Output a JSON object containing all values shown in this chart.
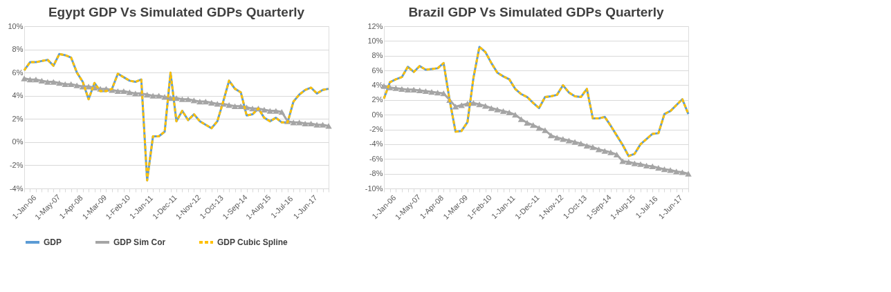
{
  "chart_data": [
    {
      "type": "line",
      "title": "Egypt GDP Vs Simulated GDPs Quarterly",
      "categories": [
        "1-Jan-06",
        null,
        null,
        null,
        "1-May-07",
        null,
        null,
        null,
        "1-Apr-08",
        null,
        null,
        null,
        "1-Mar-09",
        null,
        null,
        null,
        "1-Feb-10",
        null,
        null,
        null,
        "1-Jan-11",
        null,
        null,
        null,
        "1-Dec-11",
        null,
        null,
        null,
        "1-Nov-12",
        null,
        null,
        null,
        "1-Oct-13",
        null,
        null,
        null,
        "1-Sep-14",
        null,
        null,
        null,
        "1-Aug-15",
        null,
        null,
        null,
        "1-Jul-16",
        null,
        null,
        null,
        "1-Jun-17",
        null,
        null,
        null,
        null
      ],
      "series": [
        {
          "name": "GDP",
          "color": "#5b9bd5",
          "line_style": "solid",
          "marker": "none",
          "values": [
            6.2,
            6.9,
            6.9,
            7.0,
            7.1,
            6.6,
            7.6,
            7.5,
            7.3,
            6.0,
            5.2,
            3.7,
            5.1,
            4.4,
            4.4,
            4.6,
            5.9,
            5.6,
            5.3,
            5.2,
            5.4,
            -3.3,
            0.5,
            0.5,
            0.9,
            6.0,
            1.8,
            2.7,
            1.9,
            2.4,
            1.8,
            1.5,
            1.2,
            1.8,
            3.5,
            5.3,
            4.6,
            4.3,
            2.3,
            2.4,
            2.9,
            2.1,
            1.8,
            2.1,
            1.7,
            1.7,
            3.5,
            4.1,
            4.5,
            4.7,
            4.2,
            4.5,
            4.6
          ]
        },
        {
          "name": "GDP Sim Cor",
          "color": "#a5a5a5",
          "line_style": "solid",
          "marker": "triangle",
          "values": [
            5.5,
            5.4,
            5.4,
            5.3,
            5.2,
            5.2,
            5.1,
            5.0,
            5.0,
            4.9,
            4.8,
            4.8,
            4.7,
            4.6,
            4.6,
            4.5,
            4.4,
            4.4,
            4.3,
            4.2,
            4.2,
            4.1,
            4.0,
            4.0,
            3.9,
            3.8,
            3.8,
            3.7,
            3.7,
            3.6,
            3.5,
            3.5,
            3.4,
            3.3,
            3.3,
            3.2,
            3.1,
            3.1,
            3.0,
            2.9,
            2.9,
            2.8,
            2.7,
            2.7,
            2.6,
            1.8,
            1.7,
            1.7,
            1.6,
            1.6,
            1.5,
            1.5,
            1.4
          ]
        },
        {
          "name": "GDP Cubic Spline",
          "color": "#ffc000",
          "line_style": "dashed",
          "marker": "none",
          "values": [
            6.2,
            6.9,
            6.9,
            7.0,
            7.1,
            6.6,
            7.6,
            7.5,
            7.3,
            6.0,
            5.2,
            3.7,
            5.1,
            4.4,
            4.4,
            4.6,
            5.9,
            5.6,
            5.3,
            5.2,
            5.4,
            -3.3,
            0.5,
            0.5,
            0.9,
            6.0,
            1.8,
            2.7,
            1.9,
            2.4,
            1.8,
            1.5,
            1.2,
            1.8,
            3.5,
            5.3,
            4.6,
            4.3,
            2.3,
            2.4,
            2.9,
            2.1,
            1.8,
            2.1,
            1.7,
            1.7,
            3.5,
            4.1,
            4.5,
            4.7,
            4.2,
            4.5,
            4.6
          ]
        }
      ],
      "ylim": [
        -4,
        10
      ],
      "yticks": [
        {
          "value": -4,
          "label": "-4%"
        },
        {
          "value": -2,
          "label": "-2%"
        },
        {
          "value": 0,
          "label": "0%"
        },
        {
          "value": 2,
          "label": "2%"
        },
        {
          "value": 4,
          "label": "4%"
        },
        {
          "value": 6,
          "label": "6%"
        },
        {
          "value": 8,
          "label": "8%"
        },
        {
          "value": 10,
          "label": "10%"
        }
      ],
      "grid": "y",
      "legend": "bottom"
    },
    {
      "type": "line",
      "title": "Brazil GDP Vs Simulated GDPs Quarterly",
      "categories": [
        "1-Jan-06",
        null,
        null,
        null,
        "1-May-07",
        null,
        null,
        null,
        "1-Apr-08",
        null,
        null,
        null,
        "1-Mar-09",
        null,
        null,
        null,
        "1-Feb-10",
        null,
        null,
        null,
        "1-Jan-11",
        null,
        null,
        null,
        "1-Dec-11",
        null,
        null,
        null,
        "1-Nov-12",
        null,
        null,
        null,
        "1-Oct-13",
        null,
        null,
        null,
        "1-Sep-14",
        null,
        null,
        null,
        "1-Aug-15",
        null,
        null,
        null,
        "1-Jul-16",
        null,
        null,
        null,
        "1-Jun-17",
        null,
        null,
        null
      ],
      "series": [
        {
          "name": "GDP",
          "color": "#5b9bd5",
          "line_style": "solid",
          "marker": "none",
          "values": [
            2.2,
            4.4,
            4.8,
            5.1,
            6.5,
            5.8,
            6.6,
            6.1,
            6.2,
            6.3,
            7.0,
            2.0,
            -2.3,
            -2.2,
            -1.0,
            5.0,
            9.2,
            8.5,
            7.0,
            5.7,
            5.2,
            4.8,
            3.5,
            2.8,
            2.4,
            1.6,
            0.9,
            2.4,
            2.5,
            2.7,
            4.0,
            3.0,
            2.5,
            2.4,
            3.5,
            -0.5,
            -0.5,
            -0.3,
            -1.5,
            -2.8,
            -4.1,
            -5.6,
            -5.3,
            -4.0,
            -3.3,
            -2.6,
            -2.5,
            0.1,
            0.5,
            1.3,
            2.1,
            0.1
          ]
        },
        {
          "name": "GDP Sim Cor",
          "color": "#a5a5a5",
          "line_style": "solid",
          "marker": "triangle",
          "values": [
            3.9,
            3.7,
            3.6,
            3.5,
            3.4,
            3.4,
            3.3,
            3.2,
            3.1,
            3.0,
            2.9,
            2.0,
            1.1,
            1.3,
            1.5,
            1.6,
            1.4,
            1.2,
            0.9,
            0.7,
            0.5,
            0.3,
            0.0,
            -0.6,
            -1.1,
            -1.4,
            -1.8,
            -2.1,
            -2.8,
            -3.1,
            -3.3,
            -3.5,
            -3.7,
            -3.9,
            -4.2,
            -4.4,
            -4.7,
            -4.9,
            -5.1,
            -5.4,
            -6.3,
            -6.4,
            -6.6,
            -6.7,
            -6.9,
            -7.0,
            -7.2,
            -7.4,
            -7.5,
            -7.7,
            -7.8,
            -8.0
          ]
        },
        {
          "name": "GDP Cubic Spline",
          "color": "#ffc000",
          "line_style": "dashed",
          "marker": "none",
          "values": [
            2.2,
            4.4,
            4.8,
            5.1,
            6.5,
            5.8,
            6.6,
            6.1,
            6.2,
            6.3,
            7.0,
            2.0,
            -2.3,
            -2.2,
            -1.0,
            5.0,
            9.2,
            8.5,
            7.0,
            5.7,
            5.2,
            4.8,
            3.5,
            2.8,
            2.4,
            1.6,
            0.9,
            2.4,
            2.5,
            2.7,
            4.0,
            3.0,
            2.5,
            2.4,
            3.5,
            -0.5,
            -0.5,
            -0.3,
            -1.5,
            -2.8,
            -4.1,
            -5.6,
            -5.3,
            -4.0,
            -3.3,
            -2.6,
            -2.5,
            0.1,
            0.5,
            1.3,
            2.1,
            0.1
          ]
        }
      ],
      "ylim": [
        -10,
        12
      ],
      "yticks": [
        {
          "value": -10,
          "label": "-10%"
        },
        {
          "value": -8,
          "label": "-8%"
        },
        {
          "value": -6,
          "label": "-6%"
        },
        {
          "value": -4,
          "label": "-4%"
        },
        {
          "value": -2,
          "label": "-2%"
        },
        {
          "value": 0,
          "label": "0%"
        },
        {
          "value": 2,
          "label": "2%"
        },
        {
          "value": 4,
          "label": "4%"
        },
        {
          "value": 6,
          "label": "6%"
        },
        {
          "value": 8,
          "label": "8%"
        },
        {
          "value": 10,
          "label": "10%"
        },
        {
          "value": 12,
          "label": "12%"
        }
      ],
      "grid": "y",
      "legend": "bottom"
    }
  ]
}
